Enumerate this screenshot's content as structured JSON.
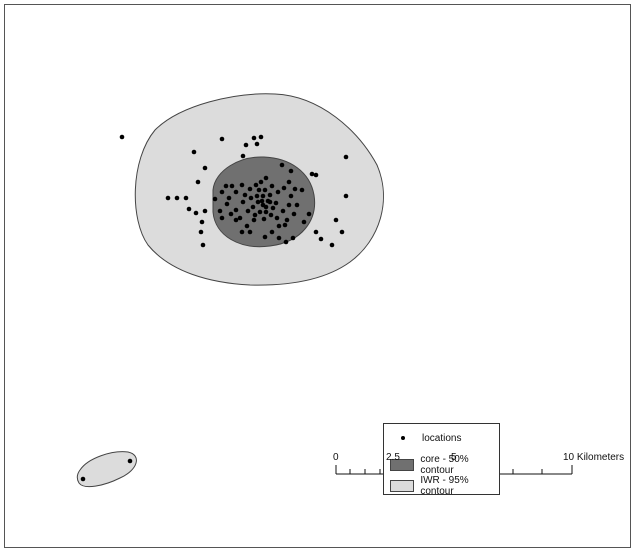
{
  "map": {
    "colors": {
      "core_fill": "#707070",
      "iwr_fill": "#dcdcdc",
      "outline": "#444444",
      "point": "#000000"
    },
    "points_main": [
      [
        122,
        137
      ],
      [
        254,
        138
      ],
      [
        261,
        137
      ],
      [
        257,
        144
      ],
      [
        246,
        145
      ],
      [
        222,
        139
      ],
      [
        194,
        152
      ],
      [
        243,
        156
      ],
      [
        346,
        157
      ],
      [
        205,
        168
      ],
      [
        312,
        174
      ],
      [
        316,
        175
      ],
      [
        198,
        182
      ],
      [
        282,
        165
      ],
      [
        291,
        171
      ],
      [
        168,
        198
      ],
      [
        177,
        198
      ],
      [
        186,
        198
      ],
      [
        189,
        209
      ],
      [
        196,
        213
      ],
      [
        202,
        222
      ],
      [
        205,
        211
      ],
      [
        201,
        232
      ],
      [
        203,
        245
      ],
      [
        346,
        196
      ],
      [
        336,
        220
      ],
      [
        342,
        232
      ],
      [
        316,
        232
      ],
      [
        321,
        239
      ],
      [
        332,
        245
      ],
      [
        215,
        199
      ],
      [
        222,
        192
      ],
      [
        226,
        186
      ],
      [
        232,
        186
      ],
      [
        227,
        204
      ],
      [
        220,
        211
      ],
      [
        222,
        218
      ],
      [
        236,
        210
      ],
      [
        243,
        202
      ],
      [
        245,
        195
      ],
      [
        250,
        189
      ],
      [
        256,
        185
      ],
      [
        261,
        182
      ],
      [
        266,
        178
      ],
      [
        272,
        186
      ],
      [
        278,
        192
      ],
      [
        284,
        188
      ],
      [
        289,
        182
      ],
      [
        295,
        189
      ],
      [
        291,
        196
      ],
      [
        297,
        205
      ],
      [
        294,
        214
      ],
      [
        287,
        220
      ],
      [
        279,
        226
      ],
      [
        272,
        232
      ],
      [
        265,
        237
      ],
      [
        279,
        238
      ],
      [
        286,
        242
      ],
      [
        293,
        238
      ],
      [
        254,
        220
      ],
      [
        247,
        226
      ],
      [
        242,
        232
      ],
      [
        236,
        220
      ],
      [
        231,
        214
      ],
      [
        253,
        207
      ],
      [
        258,
        202
      ],
      [
        263,
        196
      ],
      [
        268,
        201
      ],
      [
        273,
        208
      ],
      [
        266,
        212
      ],
      [
        260,
        212
      ],
      [
        255,
        215
      ],
      [
        263,
        205
      ],
      [
        270,
        195
      ],
      [
        276,
        203
      ],
      [
        283,
        211
      ],
      [
        248,
        211
      ],
      [
        240,
        218
      ],
      [
        229,
        198
      ],
      [
        236,
        192
      ],
      [
        242,
        185
      ],
      [
        259,
        190
      ],
      [
        265,
        190
      ],
      [
        271,
        215
      ],
      [
        277,
        218
      ],
      [
        285,
        225
      ],
      [
        289,
        205
      ],
      [
        302,
        190
      ],
      [
        304,
        222
      ],
      [
        309,
        214
      ],
      [
        251,
        198
      ],
      [
        257,
        196
      ],
      [
        262,
        201
      ],
      [
        266,
        207
      ],
      [
        270,
        202
      ],
      [
        264,
        219
      ],
      [
        250,
        232
      ]
    ],
    "points_small": [
      [
        130,
        461
      ],
      [
        83,
        479
      ]
    ]
  },
  "legend": {
    "items": [
      {
        "label": "locations",
        "symbol": "point"
      },
      {
        "label": "core - 50% contour",
        "symbol": "core"
      },
      {
        "label": "IWR - 95% contour",
        "symbol": "iwr"
      }
    ]
  },
  "scale_bar": {
    "labels": [
      "0",
      "2.5",
      "5",
      "10 Kilometers"
    ]
  }
}
